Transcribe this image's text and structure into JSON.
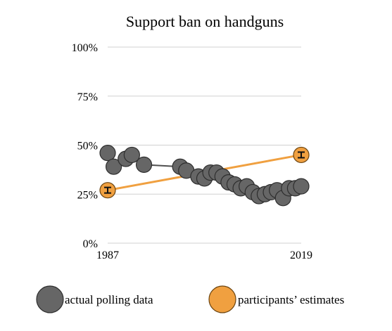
{
  "chart_data": {
    "type": "line",
    "title": "Support ban on handguns",
    "xlabel": "",
    "ylabel": "",
    "xlim": [
      1987,
      2019
    ],
    "ylim": [
      0,
      100
    ],
    "x_ticks": [
      "1987",
      "2019"
    ],
    "y_ticks": [
      "0%",
      "25%",
      "50%",
      "75%",
      "100%"
    ],
    "grid": true,
    "legend_position": "bottom",
    "series": [
      {
        "name": "actual polling data",
        "color": "#666666",
        "points": [
          {
            "x": 1987,
            "y": 46
          },
          {
            "x": 1988,
            "y": 39
          },
          {
            "x": 1990,
            "y": 43
          },
          {
            "x": 1991,
            "y": 45
          },
          {
            "x": 1993,
            "y": 40
          },
          {
            "x": 1999,
            "y": 39
          },
          {
            "x": 2000,
            "y": 37
          },
          {
            "x": 2002,
            "y": 34
          },
          {
            "x": 2003,
            "y": 33
          },
          {
            "x": 2004,
            "y": 36
          },
          {
            "x": 2005,
            "y": 36
          },
          {
            "x": 2006,
            "y": 34
          },
          {
            "x": 2007,
            "y": 31
          },
          {
            "x": 2008,
            "y": 30
          },
          {
            "x": 2009,
            "y": 28
          },
          {
            "x": 2010,
            "y": 29
          },
          {
            "x": 2011,
            "y": 26
          },
          {
            "x": 2012,
            "y": 24
          },
          {
            "x": 2013,
            "y": 25
          },
          {
            "x": 2014,
            "y": 26
          },
          {
            "x": 2015,
            "y": 27
          },
          {
            "x": 2016,
            "y": 23
          },
          {
            "x": 2017,
            "y": 28
          },
          {
            "x": 2018,
            "y": 28
          },
          {
            "x": 2019,
            "y": 29
          }
        ]
      },
      {
        "name": "participants’ estimates",
        "color": "#f0a040",
        "points": [
          {
            "x": 1987,
            "y": 27
          },
          {
            "x": 2019,
            "y": 45
          }
        ],
        "error_bars": true
      }
    ]
  }
}
